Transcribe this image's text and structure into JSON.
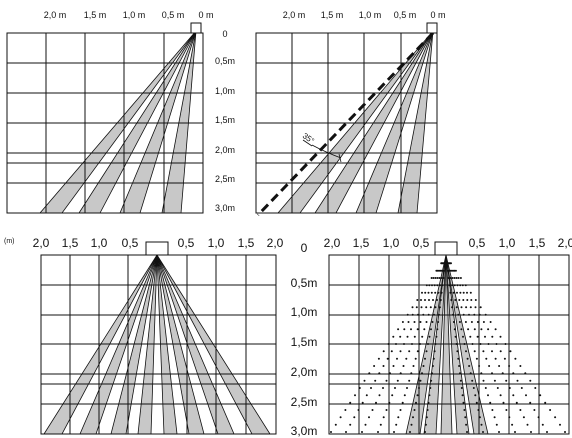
{
  "top": {
    "x_labels": [
      "2,0 m",
      "1,5 m",
      "1,0 m",
      "0,5 m",
      "0 m"
    ],
    "y_labels": [
      "0",
      "0,5m",
      "1,0m",
      "1,5m",
      "2,0m",
      "2,5m",
      "3,0m"
    ],
    "annotation": "35°"
  },
  "bottom": {
    "unit": "(m)",
    "x_labels": [
      "2,0",
      "1,5",
      "1,0",
      "0,5",
      "0,5",
      "1,0",
      "1,5",
      "2,0"
    ],
    "y_labels": [
      "0",
      "0,5m",
      "1,0m",
      "1,5m",
      "2,0m",
      "2,5m",
      "3,0m"
    ]
  },
  "colors": {
    "beam": "#c8c8c8",
    "line": "#111111",
    "background": "#ffffff"
  }
}
